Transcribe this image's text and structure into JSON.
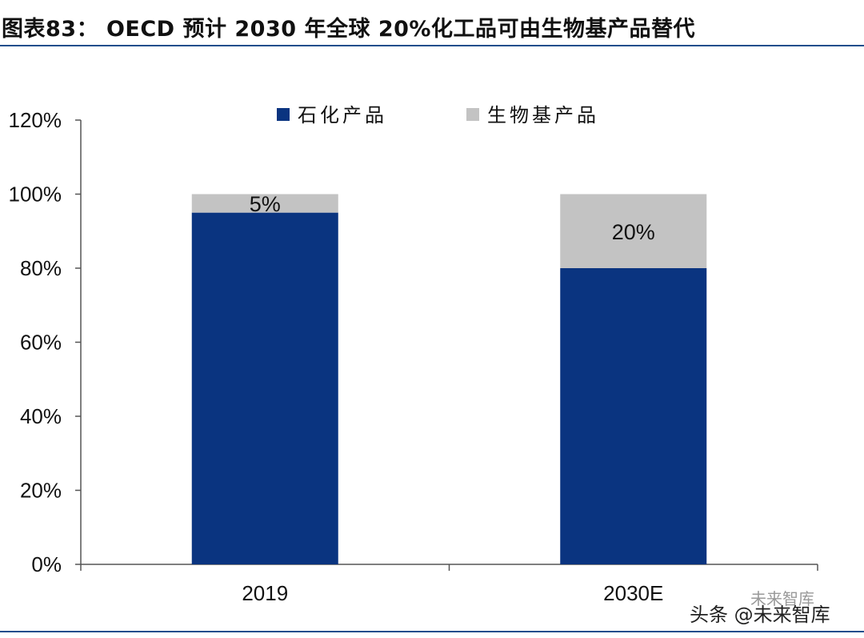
{
  "header": {
    "title": "图表83：  OECD 预计 2030 年全球 20%化工品可由生物基产品替代"
  },
  "watermark": {
    "main": "头条 @未来智库",
    "sub": "未来智库"
  },
  "colors": {
    "petrochemical": "#0a3480",
    "biobased": "#c3c3c3",
    "rule": "#1f4e8c"
  },
  "chart_data": {
    "type": "bar",
    "stacked": true,
    "categories": [
      "2019",
      "2030E"
    ],
    "series": [
      {
        "name": "石化产品",
        "values": [
          95,
          80
        ]
      },
      {
        "name": "生物基产品",
        "values": [
          5,
          20
        ]
      }
    ],
    "data_labels": [
      "5%",
      "20%"
    ],
    "ylim": [
      0,
      120
    ],
    "yticks": [
      "0%",
      "20%",
      "40%",
      "60%",
      "80%",
      "100%",
      "120%"
    ],
    "ytick_values": [
      0,
      20,
      40,
      60,
      80,
      100,
      120
    ],
    "legend_position": "top",
    "grid": false
  }
}
